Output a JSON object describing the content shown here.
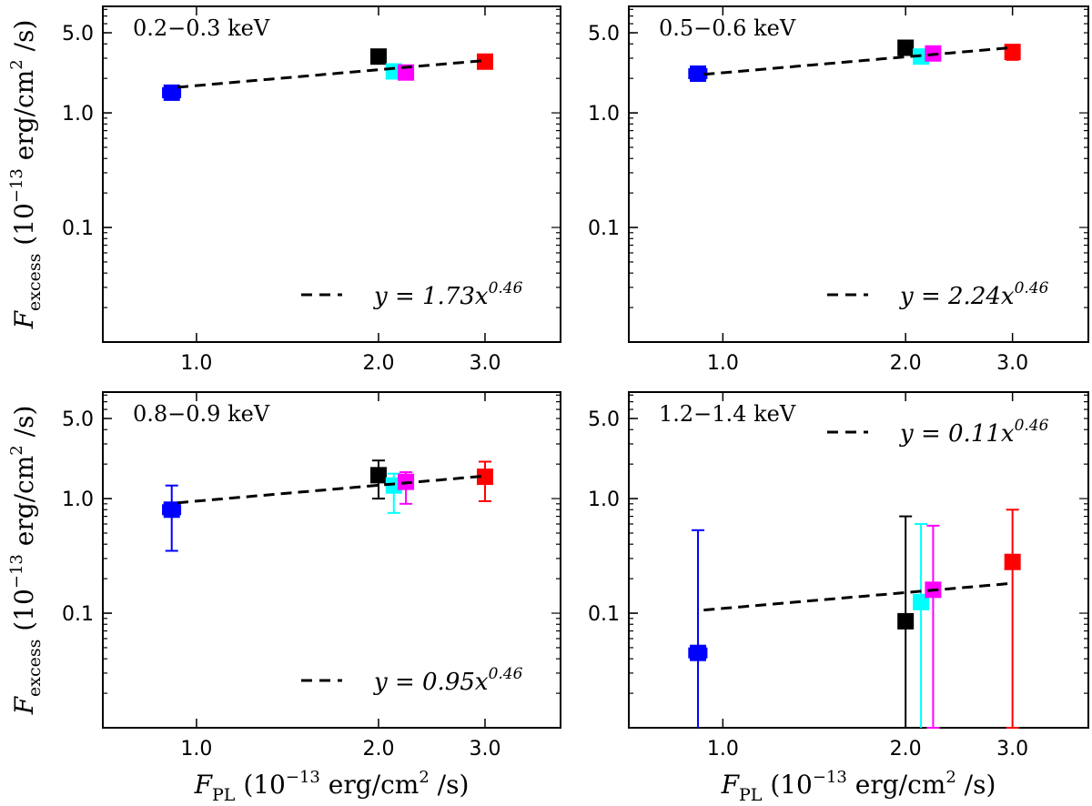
{
  "chart_data": {
    "type": "scatter",
    "x_scale": "log",
    "y_scale": "log",
    "xlim": [
      0.7,
      4.0
    ],
    "ylim": [
      0.01,
      8.5
    ],
    "x_ticks": [
      {
        "value": 1.0,
        "label": "1.0"
      },
      {
        "value": 2.0,
        "label": "2.0"
      },
      {
        "value": 3.0,
        "label": "3.0"
      }
    ],
    "y_ticks": [
      {
        "value": 0.1,
        "label": "0.1"
      },
      {
        "value": 1.0,
        "label": "1.0"
      },
      {
        "value": 5.0,
        "label": "5.0"
      }
    ],
    "xlabel": {
      "main": "F",
      "sub": "PL",
      "unit_pre": " (10",
      "sup": "−13",
      "unit_post": " erg/cm",
      "sup2": "2",
      "unit_end": " /s)"
    },
    "ylabel": {
      "main": "F",
      "sub": "excess",
      "unit_pre": " (10",
      "sup": "−13",
      "unit_post": " erg/cm",
      "sup2": "2",
      "unit_end": " /s)"
    },
    "fit_style": "dashed black line, y = A x^0.46",
    "panels": [
      {
        "band": "0.2−0.3 keV",
        "fit": {
          "y_prefix": "y = ",
          "coef": "1.73",
          "var": "x",
          "exponent": "0.46",
          "A": 1.73,
          "b": 0.46,
          "x_range": [
            0.93,
            3.0
          ]
        },
        "legend_position": "lower-right",
        "points": [
          {
            "name": "blue",
            "color": "#0000ff",
            "x": 0.91,
            "y": 1.5,
            "xerr": 0.03,
            "yerr_low": 0.1,
            "yerr_high": 0.1
          },
          {
            "name": "black",
            "color": "#000000",
            "x": 2.0,
            "y": 3.1,
            "xerr": 0.0,
            "yerr_low": 0.0,
            "yerr_high": 0.0
          },
          {
            "name": "cyan",
            "color": "#00ffff",
            "x": 2.12,
            "y": 2.3,
            "xerr": 0.0,
            "yerr_low": 0.0,
            "yerr_high": 0.0
          },
          {
            "name": "magenta",
            "color": "#ff00ff",
            "x": 2.22,
            "y": 2.25,
            "xerr": 0.0,
            "yerr_low": 0.0,
            "yerr_high": 0.0
          },
          {
            "name": "red",
            "color": "#ff0000",
            "x": 3.0,
            "y": 2.8,
            "xerr": 0.0,
            "yerr_low": 0.0,
            "yerr_high": 0.0
          }
        ]
      },
      {
        "band": "0.5−0.6 keV",
        "fit": {
          "y_prefix": "y = ",
          "coef": "2.24",
          "var": "x",
          "exponent": "0.46",
          "A": 2.24,
          "b": 0.46,
          "x_range": [
            0.93,
            3.0
          ]
        },
        "legend_position": "lower-right",
        "points": [
          {
            "name": "blue",
            "color": "#0000ff",
            "x": 0.91,
            "y": 2.2,
            "xerr": 0.03,
            "yerr_low": 0.3,
            "yerr_high": 0.3
          },
          {
            "name": "black",
            "color": "#000000",
            "x": 2.0,
            "y": 3.7,
            "xerr": 0.0,
            "yerr_low": 0.3,
            "yerr_high": 0.3
          },
          {
            "name": "cyan",
            "color": "#00ffff",
            "x": 2.12,
            "y": 3.1,
            "xerr": 0.0,
            "yerr_low": 0.4,
            "yerr_high": 0.4
          },
          {
            "name": "magenta",
            "color": "#ff00ff",
            "x": 2.22,
            "y": 3.3,
            "xerr": 0.0,
            "yerr_low": 0.2,
            "yerr_high": 0.2
          },
          {
            "name": "red",
            "color": "#ff0000",
            "x": 3.0,
            "y": 3.4,
            "xerr": 0.0,
            "yerr_low": 0.5,
            "yerr_high": 0.5
          }
        ]
      },
      {
        "band": "0.8−0.9 keV",
        "fit": {
          "y_prefix": "y = ",
          "coef": "0.95",
          "var": "x",
          "exponent": "0.46",
          "A": 0.95,
          "b": 0.46,
          "x_range": [
            0.93,
            3.0
          ]
        },
        "legend_position": "lower-right",
        "points": [
          {
            "name": "blue",
            "color": "#0000ff",
            "x": 0.91,
            "y": 0.8,
            "xerr": 0.03,
            "yerr_low": 0.45,
            "yerr_high": 0.5
          },
          {
            "name": "black",
            "color": "#000000",
            "x": 2.0,
            "y": 1.6,
            "xerr": 0.0,
            "yerr_low": 0.6,
            "yerr_high": 0.55
          },
          {
            "name": "cyan",
            "color": "#00ffff",
            "x": 2.12,
            "y": 1.3,
            "xerr": 0.0,
            "yerr_low": 0.55,
            "yerr_high": 0.35
          },
          {
            "name": "magenta",
            "color": "#ff00ff",
            "x": 2.22,
            "y": 1.4,
            "xerr": 0.0,
            "yerr_low": 0.5,
            "yerr_high": 0.3
          },
          {
            "name": "red",
            "color": "#ff0000",
            "x": 3.0,
            "y": 1.55,
            "xerr": 0.0,
            "yerr_low": 0.6,
            "yerr_high": 0.55
          }
        ]
      },
      {
        "band": "1.2−1.4 keV",
        "fit": {
          "y_prefix": "y = ",
          "coef": "0.11",
          "var": "x",
          "exponent": "0.46",
          "A": 0.11,
          "b": 0.46,
          "x_range": [
            0.93,
            3.0
          ]
        },
        "legend_position": "upper-right",
        "points": [
          {
            "name": "blue",
            "color": "#0000ff",
            "x": 0.91,
            "y": 0.045,
            "xerr": 0.03,
            "yerr_low": 0.035,
            "yerr_high": 0.485
          },
          {
            "name": "black",
            "color": "#000000",
            "x": 2.0,
            "y": 0.085,
            "xerr": 0.0,
            "yerr_low": 0.075,
            "yerr_high": 0.615
          },
          {
            "name": "cyan",
            "color": "#00ffff",
            "x": 2.12,
            "y": 0.125,
            "xerr": 0.0,
            "yerr_low": 0.115,
            "yerr_high": 0.475
          },
          {
            "name": "magenta",
            "color": "#ff00ff",
            "x": 2.22,
            "y": 0.16,
            "xerr": 0.0,
            "yerr_low": 0.15,
            "yerr_high": 0.42
          },
          {
            "name": "red",
            "color": "#ff0000",
            "x": 3.0,
            "y": 0.28,
            "xerr": 0.0,
            "yerr_low": 0.27,
            "yerr_high": 0.52
          }
        ]
      }
    ]
  }
}
